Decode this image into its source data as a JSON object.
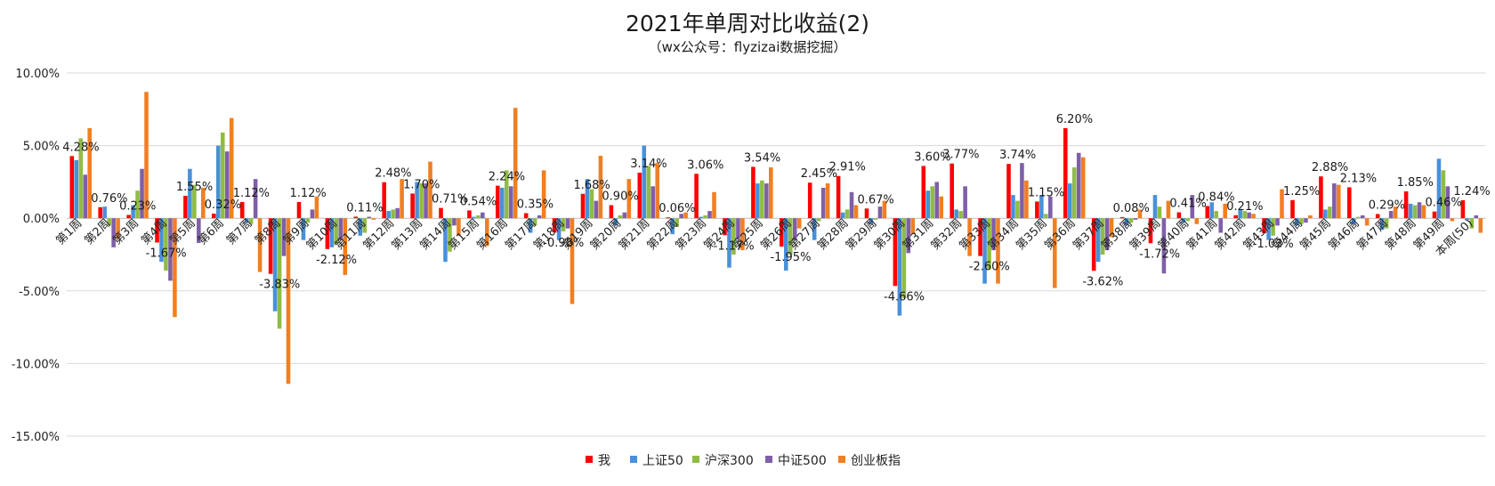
{
  "chart_data": {
    "type": "bar",
    "title": "2021年单周对比收益(2)",
    "subtitle": "（wx公众号：flyzizai数据挖掘）",
    "xlabel": "",
    "ylabel": "",
    "ylim": [
      -15,
      10
    ],
    "yticks": [
      10,
      5,
      0,
      -5,
      -10,
      -15
    ],
    "ytick_labels": [
      "10.00%",
      "5.00%",
      "0.00%",
      "-5.00%",
      "-10.00%",
      "-15.00%"
    ],
    "grid": true,
    "legend_position": "bottom",
    "categories": [
      "第1周",
      "第2周",
      "第3周",
      "第4周",
      "第5周",
      "第6周",
      "第7周",
      "第8周",
      "第9周",
      "第10周",
      "第11周",
      "第12周",
      "第13周",
      "第14周",
      "第15周",
      "第16周",
      "第17周",
      "第18周",
      "第19周",
      "第20周",
      "第21周",
      "第22周",
      "第23周",
      "第24周",
      "第25周",
      "第26周",
      "第27周",
      "第28周",
      "第29周",
      "第30周",
      "第31周",
      "第32周",
      "第33周",
      "第34周",
      "第35周",
      "第36周",
      "第37周",
      "第38周",
      "第39周",
      "第40周",
      "第41周",
      "第42周",
      "第43周",
      "第44周",
      "第45周",
      "第46周",
      "第47周",
      "第48周",
      "第49周",
      "本周(50)"
    ],
    "series": [
      {
        "name": "我",
        "color": "#ff0000",
        "values": [
          4.28,
          0.76,
          0.23,
          -1.67,
          1.55,
          0.32,
          1.12,
          -3.83,
          1.12,
          -2.12,
          0.11,
          2.48,
          1.7,
          0.71,
          0.54,
          2.24,
          0.35,
          -0.98,
          1.68,
          0.9,
          3.14,
          0.06,
          3.06,
          -1.17,
          3.54,
          -1.95,
          2.45,
          2.91,
          0.67,
          -4.66,
          3.6,
          3.77,
          -2.6,
          3.74,
          1.15,
          6.2,
          -3.62,
          0.08,
          -1.72,
          0.41,
          0.84,
          0.21,
          -1.03,
          1.25,
          2.88,
          2.13,
          0.29,
          1.85,
          0.46,
          1.24
        ]
      },
      {
        "name": "上证50",
        "color": "#4a90d9",
        "values": [
          4.0,
          0.8,
          0.9,
          -3.0,
          3.4,
          5.0,
          -0.3,
          -6.4,
          -1.5,
          -2.0,
          -1.2,
          0.5,
          2.5,
          -3.0,
          0.1,
          2.1,
          -1.0,
          -1.5,
          2.7,
          -0.5,
          5.0,
          -1.1,
          0.1,
          -3.4,
          2.4,
          -3.6,
          -1.5,
          0.4,
          -0.4,
          -6.7,
          1.9,
          0.6,
          -4.5,
          1.6,
          1.6,
          2.4,
          -3.0,
          -0.5,
          1.6,
          -0.3,
          1.1,
          0.6,
          -1.5,
          -0.5,
          0.6,
          -0.4,
          -0.8,
          1.0,
          4.1,
          -0.1
        ]
      },
      {
        "name": "沪深300",
        "color": "#8fbc45",
        "values": [
          5.5,
          -0.5,
          1.9,
          -3.6,
          2.3,
          5.9,
          -0.4,
          -7.6,
          -0.3,
          -1.8,
          -1.0,
          0.6,
          2.4,
          -2.3,
          0.2,
          3.3,
          -0.5,
          -0.9,
          2.0,
          0.2,
          3.6,
          -0.6,
          0.2,
          -2.5,
          2.6,
          -2.5,
          -0.2,
          0.6,
          -0.1,
          -5.5,
          2.2,
          0.5,
          -3.5,
          1.2,
          0.3,
          3.5,
          -2.5,
          -0.3,
          0.8,
          -0.2,
          0.5,
          0.5,
          -1.2,
          -0.4,
          0.8,
          0.1,
          -0.7,
          0.9,
          3.3,
          -0.7
        ]
      },
      {
        "name": "中证500",
        "color": "#7f5fa8",
        "values": [
          3.0,
          -2.0,
          3.4,
          -4.3,
          -1.7,
          4.6,
          2.7,
          -2.6,
          0.6,
          -1.5,
          0.1,
          0.7,
          2.4,
          -0.5,
          0.4,
          2.2,
          0.2,
          -0.7,
          1.2,
          0.4,
          2.2,
          0.3,
          0.5,
          -1.4,
          2.4,
          -1.5,
          2.1,
          1.8,
          0.8,
          -2.4,
          2.5,
          2.2,
          -2.2,
          3.8,
          1.5,
          4.5,
          -2.2,
          -0.1,
          -3.8,
          1.6,
          -1.0,
          0.4,
          -0.5,
          -0.3,
          2.4,
          0.2,
          0.5,
          1.1,
          2.2,
          0.2
        ]
      },
      {
        "name": "创业板指",
        "color": "#f07f22",
        "values": [
          6.2,
          -1.4,
          8.7,
          -6.8,
          2.1,
          6.9,
          -3.7,
          -11.4,
          1.5,
          -3.9,
          -0.1,
          2.7,
          3.9,
          -1.2,
          -1.9,
          7.6,
          3.3,
          -5.9,
          4.3,
          2.7,
          3.8,
          0.4,
          1.8,
          -2.2,
          3.5,
          -0.7,
          2.4,
          0.9,
          1.2,
          -1.1,
          1.5,
          -2.6,
          -4.5,
          2.6,
          -4.8,
          4.2,
          -1.3,
          0.6,
          1.2,
          -0.4,
          1.0,
          0.3,
          2.0,
          0.2,
          2.3,
          -0.5,
          0.8,
          0.9,
          -0.2,
          -1.0
        ]
      }
    ],
    "data_labels": [
      "4.28%",
      "0.76%",
      "0.23%",
      "-1.67%",
      "1.55%",
      "0.32%",
      "1.12%",
      "-3.83%",
      "1.12%",
      "-2.12%",
      "0.11%",
      "2.48%",
      "1.70%",
      "0.71%",
      "0.54%",
      "2.24%",
      "0.35%",
      "-0.98%",
      "1.68%",
      "0.90%",
      "3.14%",
      "0.06%",
      "3.06%",
      "-1.17%",
      "3.54%",
      "-1.95%",
      "2.45%",
      "2.91%",
      "0.67%",
      "-4.66%",
      "3.60%",
      "3.77%",
      "-2.60%",
      "3.74%",
      "1.15%",
      "6.20%",
      "-3.62%",
      "0.08%",
      "-1.72%",
      "0.41%",
      "0.84%",
      "0.21%",
      "-1.03%",
      "1.25%",
      "2.88%",
      "2.13%",
      "0.29%",
      "1.85%",
      "0.46%",
      "1.24%"
    ]
  }
}
